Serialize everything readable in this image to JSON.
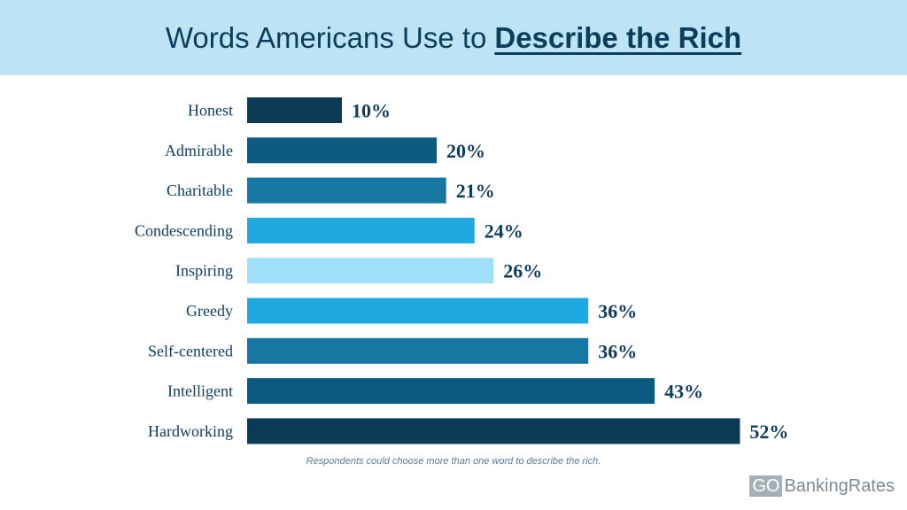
{
  "header": {
    "title_light": "Words Americans Use to",
    "title_strong": "Describe the Rich"
  },
  "colors": {
    "header_bg": "#bde3f5",
    "text": "#0d3d5c",
    "bar_palette": [
      "#0b3a57",
      "#0b5a80",
      "#1677a3",
      "#1ea9e1",
      "#9fe0fa",
      "#1ea9e1",
      "#1677a3",
      "#0b5a80",
      "#0b3a57"
    ]
  },
  "chart_data": {
    "type": "bar",
    "orientation": "horizontal",
    "title": "Words Americans Use to Describe the Rich",
    "categories": [
      "Honest",
      "Admirable",
      "Charitable",
      "Condescending",
      "Inspiring",
      "Greedy",
      "Self-centered",
      "Intelligent",
      "Hardworking"
    ],
    "values": [
      10,
      20,
      21,
      24,
      26,
      36,
      36,
      43,
      52
    ],
    "value_labels": [
      "10%",
      "20%",
      "21%",
      "24%",
      "26%",
      "36%",
      "36%",
      "43%",
      "52%"
    ],
    "unit": "%",
    "xlabel": "",
    "ylabel": "",
    "grid": false,
    "legend": "none"
  },
  "footnote": "Respondents could choose more than one word to describe the rich.",
  "brand": {
    "go": "GO",
    "name": "BankingRates"
  }
}
